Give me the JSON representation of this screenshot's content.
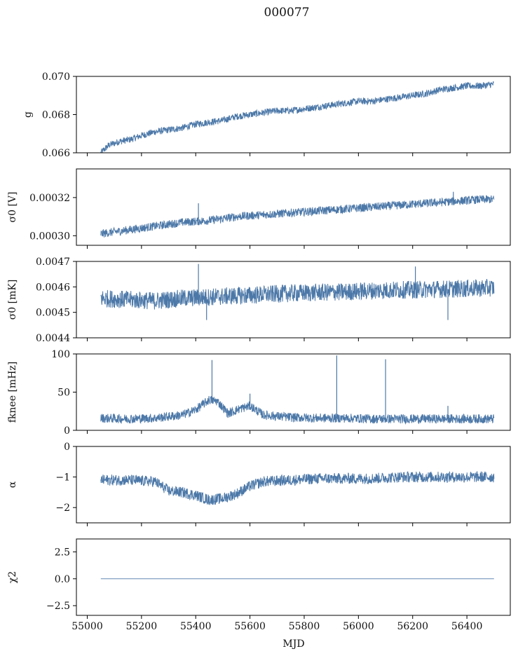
{
  "figure": {
    "title": "000077",
    "xlabel": "MJD",
    "line_color": "#4c78a8"
  },
  "chart_data": [
    {
      "type": "line",
      "name": "panel-g",
      "ylabel": "g",
      "ylim": [
        0.066,
        0.07
      ],
      "yticks": [
        "0.066",
        "0.068",
        "0.070"
      ],
      "xlim": [
        54960,
        56560
      ],
      "series": [
        {
          "x": [
            55050,
            55080,
            55120,
            55160,
            55200,
            55250,
            55300,
            55350,
            55400,
            55450,
            55500,
            55550,
            55600,
            55650,
            55700,
            55750,
            55800,
            55850,
            55900,
            55950,
            56000,
            56050,
            56100,
            56150,
            56200,
            56250,
            56300,
            56350,
            56400,
            56450,
            56500
          ],
          "y": [
            0.066,
            0.0664,
            0.0666,
            0.0667,
            0.0669,
            0.0671,
            0.0672,
            0.0673,
            0.0675,
            0.0676,
            0.0677,
            0.0679,
            0.068,
            0.0681,
            0.0682,
            0.0682,
            0.0683,
            0.0684,
            0.0685,
            0.0686,
            0.0687,
            0.0687,
            0.0688,
            0.0689,
            0.069,
            0.0691,
            0.0693,
            0.0694,
            0.0695,
            0.0695,
            0.0696
          ]
        }
      ],
      "noise_amp": 0.00018,
      "spikes": []
    },
    {
      "type": "line",
      "name": "panel-sigma0-V",
      "ylabel": "σ0 [V]",
      "ylim": [
        0.000295,
        0.000335
      ],
      "yticks": [
        "0.00030",
        "0.00032"
      ],
      "xlim": [
        54960,
        56560
      ],
      "series": [
        {
          "x": [
            55050,
            55150,
            55250,
            55350,
            55450,
            55550,
            55650,
            55750,
            55850,
            55950,
            56050,
            56150,
            56250,
            56350,
            56450,
            56500
          ],
          "y": [
            0.000301,
            0.000303,
            0.000305,
            0.000307,
            0.000308,
            0.00031,
            0.000311,
            0.000312,
            0.000313,
            0.000314,
            0.000315,
            0.000316,
            0.000317,
            0.000318,
            0.000319,
            0.000319
          ]
        }
      ],
      "noise_amp": 2.2e-06,
      "spikes": [
        [
          55410,
          0.000317
        ],
        [
          56350,
          0.000323
        ]
      ]
    },
    {
      "type": "line",
      "name": "panel-sigma0-mK",
      "ylabel": "σ0 [mK]",
      "ylim": [
        0.0044,
        0.0047
      ],
      "yticks": [
        "0.0044",
        "0.0045",
        "0.0046",
        "0.0047"
      ],
      "xlim": [
        54960,
        56560
      ],
      "series": [
        {
          "x": [
            55050,
            55150,
            55250,
            55350,
            55450,
            55550,
            55650,
            55750,
            55850,
            55950,
            56050,
            56150,
            56250,
            56350,
            56450,
            56500
          ],
          "y": [
            0.004555,
            0.00455,
            0.004545,
            0.004555,
            0.00456,
            0.004565,
            0.00457,
            0.004575,
            0.004578,
            0.00458,
            0.004585,
            0.004588,
            0.00459,
            0.004592,
            0.004595,
            0.004597
          ]
        }
      ],
      "noise_amp": 3.5e-05,
      "spikes": [
        [
          55410,
          0.00469
        ],
        [
          56210,
          0.00468
        ],
        [
          56330,
          0.00447
        ],
        [
          55440,
          0.00447
        ]
      ]
    },
    {
      "type": "line",
      "name": "panel-fknee",
      "ylabel": "fknee [mHz]",
      "ylim": [
        0,
        100
      ],
      "yticks": [
        "0",
        "50",
        "100"
      ],
      "xlim": [
        54960,
        56560
      ],
      "series": [
        {
          "x": [
            55050,
            55150,
            55250,
            55350,
            55400,
            55450,
            55480,
            55520,
            55560,
            55600,
            55650,
            55750,
            55850,
            55950,
            56050,
            56150,
            56250,
            56350,
            56450,
            56500
          ],
          "y": [
            16,
            15,
            16,
            20,
            27,
            40,
            38,
            22,
            28,
            32,
            20,
            17,
            16,
            16,
            15,
            15,
            15,
            15,
            15,
            15
          ]
        }
      ],
      "noise_amp": 6,
      "spikes": [
        [
          55460,
          92
        ],
        [
          55920,
          98
        ],
        [
          56100,
          93
        ],
        [
          55600,
          48
        ],
        [
          56330,
          32
        ]
      ]
    },
    {
      "type": "line",
      "name": "panel-alpha",
      "ylabel": "α",
      "ylim": [
        -2.5,
        0
      ],
      "yticks": [
        "−2",
        "−1",
        "0"
      ],
      "xlim": [
        54960,
        56560
      ],
      "series": [
        {
          "x": [
            55050,
            55150,
            55250,
            55300,
            55350,
            55400,
            55450,
            55500,
            55550,
            55600,
            55650,
            55750,
            55850,
            55950,
            56050,
            56150,
            56250,
            56350,
            56450,
            56500
          ],
          "y": [
            -1.1,
            -1.1,
            -1.15,
            -1.45,
            -1.5,
            -1.6,
            -1.75,
            -1.7,
            -1.55,
            -1.3,
            -1.15,
            -1.1,
            -1.05,
            -1.05,
            -1.05,
            -1.0,
            -1.0,
            -1.0,
            -1.0,
            -1.0
          ]
        }
      ],
      "noise_amp": 0.18,
      "spikes": []
    },
    {
      "type": "line",
      "name": "panel-chi2",
      "ylabel": "χ2",
      "ylim": [
        -3.4,
        3.7
      ],
      "yticks": [
        "−2.5",
        "0.0",
        "2.5"
      ],
      "xlim": [
        54960,
        56560
      ],
      "xticks": [
        "55000",
        "55200",
        "55400",
        "55600",
        "55800",
        "56000",
        "56200",
        "56400"
      ],
      "series": [
        {
          "x": [
            55050,
            56500
          ],
          "y": [
            0,
            0
          ]
        }
      ],
      "noise_amp": 0,
      "spikes": []
    }
  ]
}
